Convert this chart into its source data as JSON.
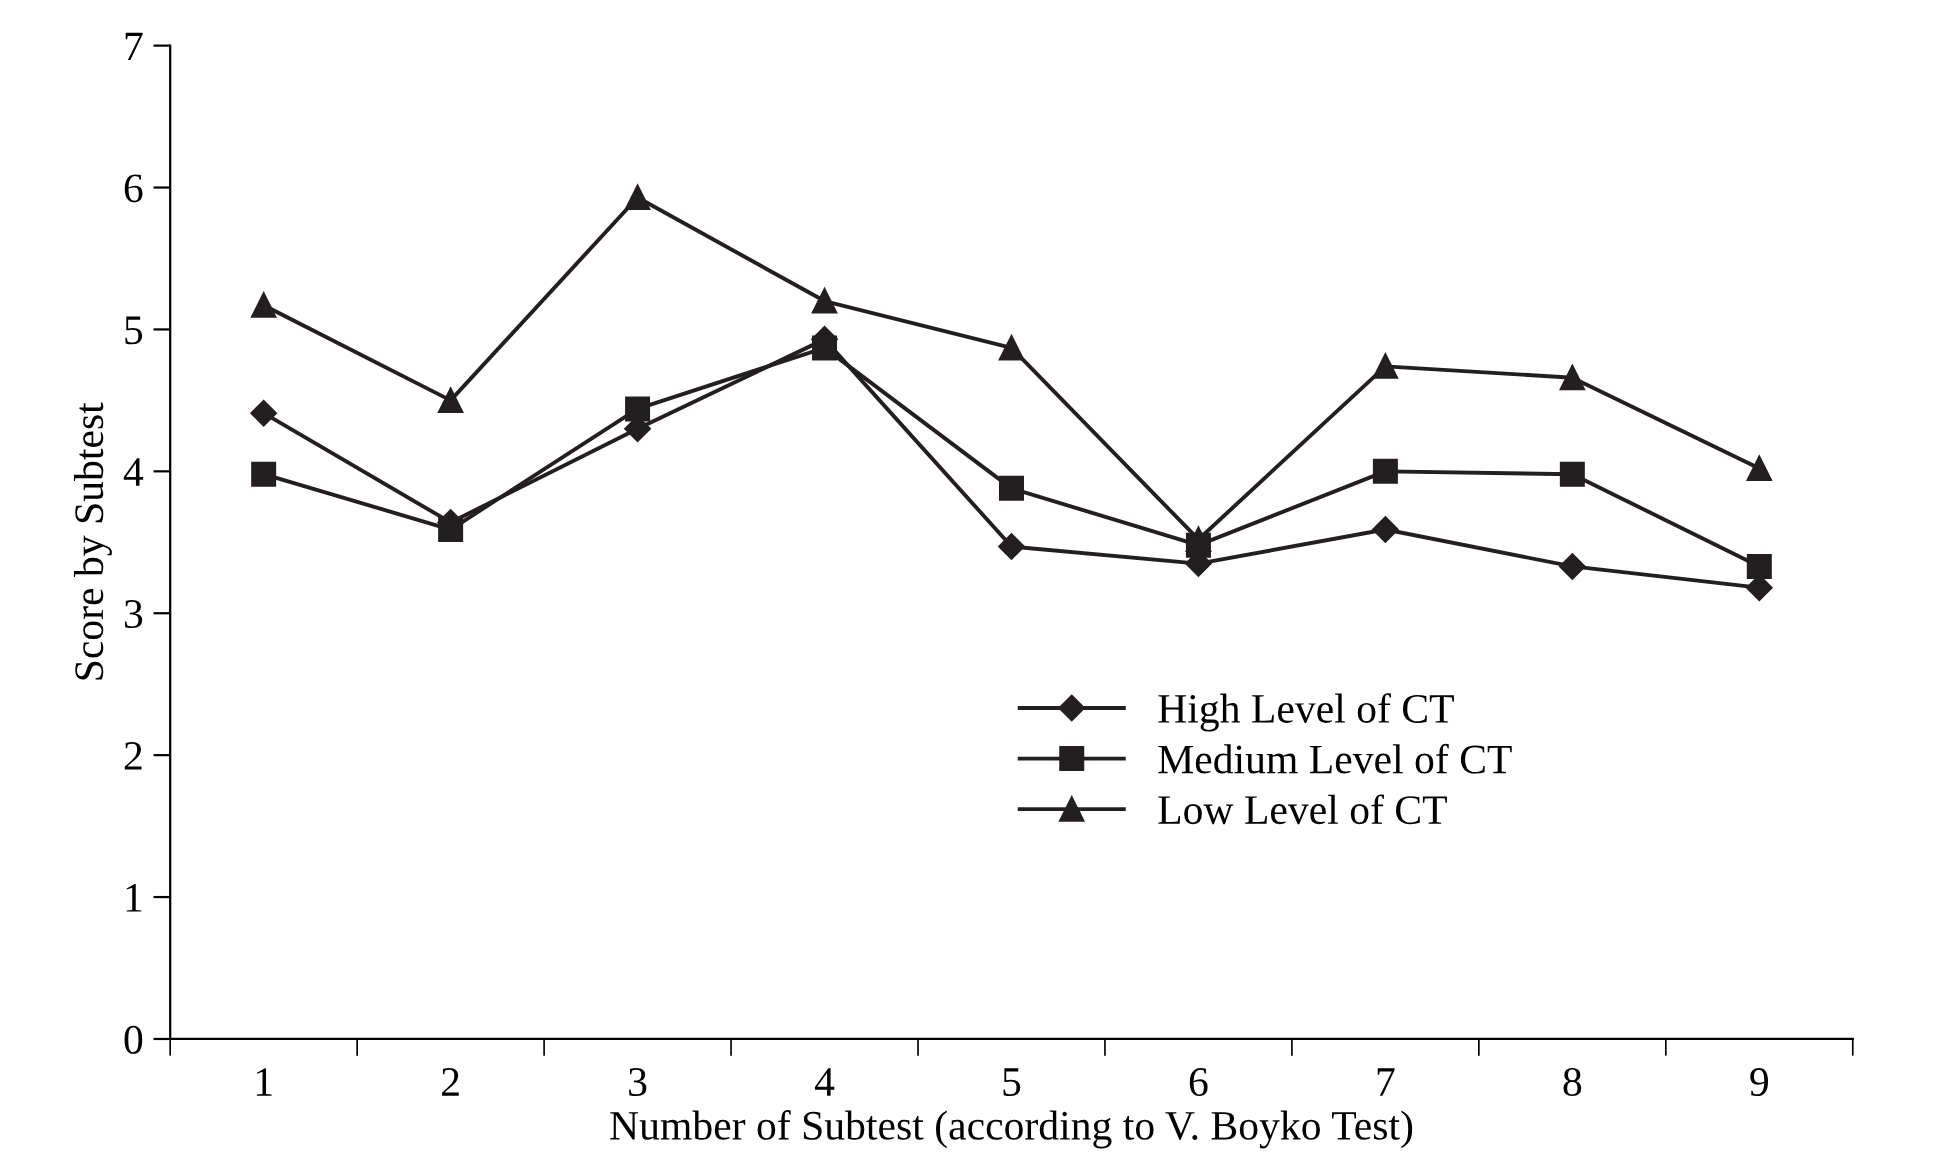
{
  "chart_data": {
    "type": "line",
    "xlabel": "Number of Subtest (according to V. Boyko Test)",
    "ylabel": "Score by Subtest",
    "categories": [
      "1",
      "2",
      "3",
      "4",
      "5",
      "6",
      "7",
      "8",
      "9"
    ],
    "ylim": [
      0,
      7
    ],
    "yticks": [
      0,
      1,
      2,
      3,
      4,
      5,
      6,
      7
    ],
    "grid": false,
    "legend": "bottom right",
    "line_style": "solid",
    "series": [
      {
        "name": "High Level of CT",
        "color": "#231f20",
        "marker": "diamond",
        "values": [
          4.41,
          3.64,
          4.3,
          4.93,
          3.47,
          3.35,
          3.59,
          3.33,
          3.18
        ]
      },
      {
        "name": "Medium Level of CT",
        "color": "#231f20",
        "marker": "square",
        "values": [
          3.98,
          3.59,
          4.44,
          4.87,
          3.88,
          3.48,
          4.0,
          3.98,
          3.33
        ]
      },
      {
        "name": "Low Level of CT",
        "color": "#231f20",
        "marker": "triangle",
        "values": [
          5.17,
          4.5,
          5.93,
          5.2,
          4.87,
          3.52,
          4.74,
          4.66,
          4.02
        ]
      }
    ]
  }
}
